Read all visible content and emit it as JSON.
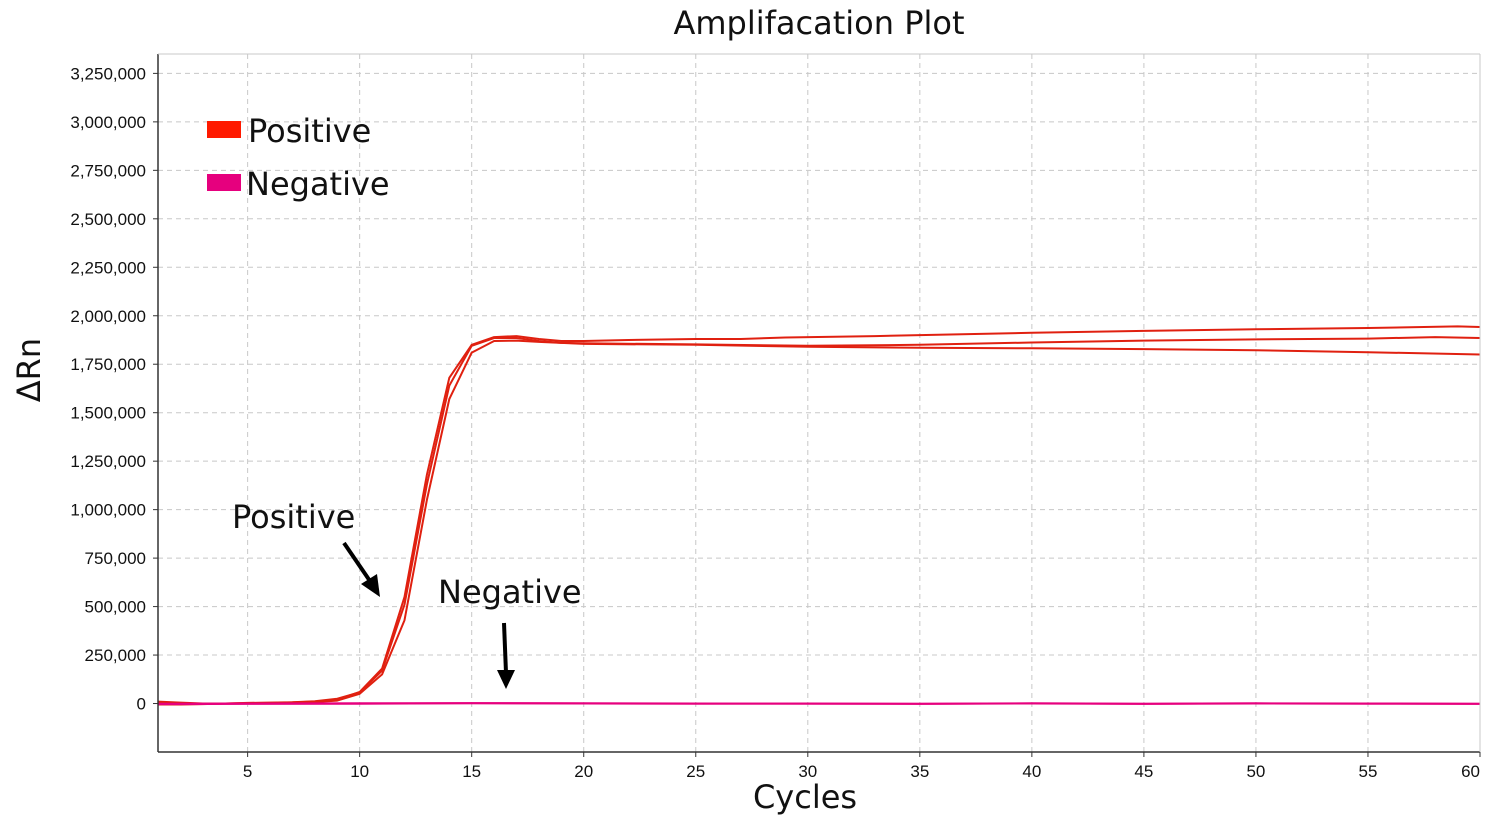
{
  "chart_data": {
    "type": "line",
    "title": "Amplifacation Plot",
    "xlabel": "Cycles",
    "ylabel": "ΔRn",
    "xlim": [
      1,
      60
    ],
    "ylim": [
      -250000,
      3350000
    ],
    "xticks": [
      5,
      10,
      15,
      20,
      25,
      30,
      35,
      40,
      45,
      50,
      55,
      60
    ],
    "xtick_labels": [
      "5",
      "10",
      "15",
      "20",
      "25",
      "30",
      "35",
      "40",
      "45",
      "50",
      "55",
      "60"
    ],
    "yticks": [
      0,
      250000,
      500000,
      750000,
      1000000,
      1250000,
      1500000,
      1750000,
      2000000,
      2250000,
      2500000,
      2750000,
      3000000,
      3250000
    ],
    "ytick_labels": [
      "0",
      "250,000",
      "500,000",
      "750,000",
      "1,000,000",
      "1,250,000",
      "1,500,000",
      "1,750,000",
      "2,000,000",
      "2,250,000",
      "2,500,000",
      "2,750,000",
      "3,000,000",
      "3,250,000"
    ],
    "grid": true,
    "legend": {
      "position": "top-left",
      "entries": [
        {
          "label": "Positive",
          "color": "#ff1a00"
        },
        {
          "label": "Negative",
          "color": "#e6007e"
        }
      ]
    },
    "annotations": [
      {
        "text": "Positive",
        "x": 11,
        "y": 550000
      },
      {
        "text": "Negative",
        "x": 16.5,
        "y": 80000
      }
    ],
    "series": [
      {
        "group": "Positive",
        "color": "#e02010",
        "points": [
          [
            1,
            10000
          ],
          [
            2,
            5000
          ],
          [
            3,
            0
          ],
          [
            4,
            0
          ],
          [
            5,
            2000
          ],
          [
            6,
            3000
          ],
          [
            7,
            6000
          ],
          [
            8,
            10000
          ],
          [
            9,
            20000
          ],
          [
            10,
            60000
          ],
          [
            11,
            180000
          ],
          [
            12,
            550000
          ],
          [
            13,
            1180000
          ],
          [
            14,
            1680000
          ],
          [
            15,
            1850000
          ],
          [
            16,
            1890000
          ],
          [
            17,
            1895000
          ],
          [
            18,
            1880000
          ],
          [
            19,
            1870000
          ],
          [
            20,
            1870000
          ],
          [
            22,
            1875000
          ],
          [
            25,
            1880000
          ],
          [
            27,
            1880000
          ],
          [
            29,
            1888000
          ],
          [
            33,
            1895000
          ],
          [
            35,
            1900000
          ],
          [
            40,
            1912000
          ],
          [
            45,
            1922000
          ],
          [
            50,
            1930000
          ],
          [
            55,
            1937000
          ],
          [
            59,
            1945000
          ],
          [
            60,
            1942000
          ]
        ]
      },
      {
        "group": "Positive",
        "color": "#e02010",
        "points": [
          [
            1,
            -5000
          ],
          [
            2,
            -5000
          ],
          [
            3,
            -3000
          ],
          [
            4,
            0
          ],
          [
            5,
            0
          ],
          [
            6,
            2000
          ],
          [
            7,
            4000
          ],
          [
            8,
            8000
          ],
          [
            9,
            15000
          ],
          [
            10,
            50000
          ],
          [
            11,
            150000
          ],
          [
            12,
            430000
          ],
          [
            13,
            1050000
          ],
          [
            14,
            1570000
          ],
          [
            15,
            1810000
          ],
          [
            16,
            1870000
          ],
          [
            17,
            1872000
          ],
          [
            18,
            1865000
          ],
          [
            19,
            1860000
          ],
          [
            20,
            1858000
          ],
          [
            25,
            1852000
          ],
          [
            30,
            1845000
          ],
          [
            35,
            1850000
          ],
          [
            40,
            1862000
          ],
          [
            45,
            1872000
          ],
          [
            50,
            1878000
          ],
          [
            55,
            1882000
          ],
          [
            58,
            1890000
          ],
          [
            60,
            1885000
          ]
        ]
      },
      {
        "group": "Positive",
        "color": "#e02010",
        "points": [
          [
            1,
            0
          ],
          [
            2,
            -2000
          ],
          [
            3,
            0
          ],
          [
            4,
            0
          ],
          [
            5,
            3000
          ],
          [
            6,
            5000
          ],
          [
            7,
            7000
          ],
          [
            8,
            12000
          ],
          [
            9,
            25000
          ],
          [
            10,
            58000
          ],
          [
            11,
            170000
          ],
          [
            12,
            510000
          ],
          [
            13,
            1130000
          ],
          [
            14,
            1640000
          ],
          [
            15,
            1845000
          ],
          [
            16,
            1885000
          ],
          [
            17,
            1885000
          ],
          [
            18,
            1870000
          ],
          [
            19,
            1860000
          ],
          [
            20,
            1855000
          ],
          [
            25,
            1850000
          ],
          [
            30,
            1840000
          ],
          [
            35,
            1835000
          ],
          [
            40,
            1832000
          ],
          [
            45,
            1828000
          ],
          [
            50,
            1822000
          ],
          [
            55,
            1812000
          ],
          [
            60,
            1800000
          ]
        ]
      },
      {
        "group": "Negative",
        "color": "#e6007e",
        "points": [
          [
            1,
            -3000
          ],
          [
            5,
            -2000
          ],
          [
            10,
            -1000
          ],
          [
            15,
            1000
          ],
          [
            20,
            0
          ],
          [
            25,
            -1000
          ],
          [
            30,
            0
          ],
          [
            35,
            -2000
          ],
          [
            40,
            0
          ],
          [
            45,
            -2000
          ],
          [
            50,
            0
          ],
          [
            55,
            -1000
          ],
          [
            60,
            -2000
          ]
        ]
      },
      {
        "group": "Negative",
        "color": "#e6007e",
        "points": [
          [
            1,
            -1000
          ],
          [
            5,
            0
          ],
          [
            10,
            1000
          ],
          [
            15,
            2000
          ],
          [
            20,
            1000
          ],
          [
            25,
            0
          ],
          [
            30,
            -1000
          ],
          [
            35,
            -1000
          ],
          [
            40,
            1000
          ],
          [
            45,
            -1000
          ],
          [
            50,
            1000
          ],
          [
            55,
            0
          ],
          [
            60,
            -1000
          ]
        ]
      }
    ]
  }
}
